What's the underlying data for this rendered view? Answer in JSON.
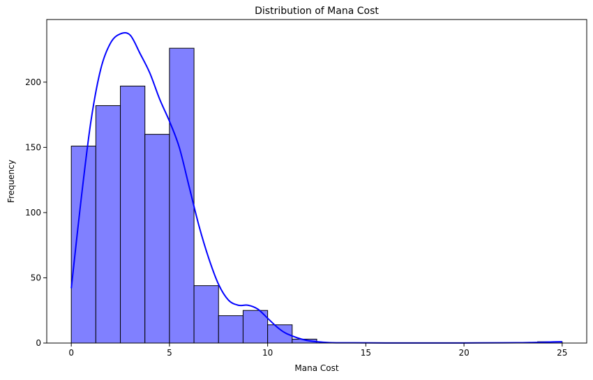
{
  "chart_data": {
    "type": "bar",
    "title": "Distribution of Mana Cost",
    "xlabel": "Mana Cost",
    "ylabel": "Frequency",
    "xlim": [
      -1.25,
      26.25
    ],
    "ylim": [
      0,
      248
    ],
    "x_ticks": [
      0,
      5,
      10,
      15,
      20,
      25
    ],
    "y_ticks": [
      0,
      50,
      100,
      150,
      200
    ],
    "bin_width": 1.25,
    "bins": [
      {
        "x0": 0.0,
        "count": 151
      },
      {
        "x0": 1.25,
        "count": 182
      },
      {
        "x0": 2.5,
        "count": 197
      },
      {
        "x0": 3.75,
        "count": 160
      },
      {
        "x0": 5.0,
        "count": 226
      },
      {
        "x0": 6.25,
        "count": 44
      },
      {
        "x0": 7.5,
        "count": 21
      },
      {
        "x0": 8.75,
        "count": 25
      },
      {
        "x0": 10.0,
        "count": 14
      },
      {
        "x0": 11.25,
        "count": 3
      },
      {
        "x0": 12.5,
        "count": 0
      },
      {
        "x0": 13.75,
        "count": 0
      },
      {
        "x0": 15.0,
        "count": 0
      },
      {
        "x0": 16.25,
        "count": 0
      },
      {
        "x0": 17.5,
        "count": 0
      },
      {
        "x0": 18.75,
        "count": 0
      },
      {
        "x0": 20.0,
        "count": 0
      },
      {
        "x0": 21.25,
        "count": 0
      },
      {
        "x0": 22.5,
        "count": 0
      },
      {
        "x0": 23.75,
        "count": 1
      }
    ],
    "kde": {
      "x": [
        0,
        0.5,
        1,
        1.5,
        2,
        2.5,
        3,
        3.5,
        4,
        4.5,
        5,
        5.5,
        6,
        6.5,
        7,
        7.5,
        8,
        8.5,
        9,
        9.5,
        10,
        10.5,
        11,
        12,
        13,
        14,
        16,
        18,
        20,
        22,
        23,
        24,
        24.5,
        25
      ],
      "y": [
        42,
        110,
        170,
        210,
        230,
        237,
        236,
        222,
        207,
        187,
        170,
        150,
        120,
        90,
        65,
        45,
        33,
        29,
        29,
        26,
        19,
        12,
        7,
        2,
        0.5,
        0.2,
        0.1,
        0.1,
        0.1,
        0.2,
        0.3,
        0.6,
        0.9,
        1
      ]
    },
    "bar_color": "#8080ff",
    "bar_edge_color": "#000000",
    "line_color": "#0000ff",
    "grid": false,
    "legend": "none"
  }
}
